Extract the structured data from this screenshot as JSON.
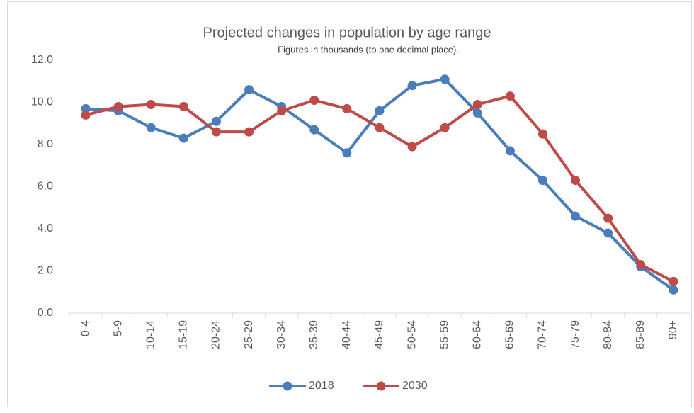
{
  "chart_data": {
    "type": "line",
    "title": "Projected changes in population by age range",
    "subtitle": "Figures in thousands (to one decimal place).",
    "categories": [
      "0-4",
      "5-9",
      "10-14",
      "15-19",
      "20-24",
      "25-29",
      "30-34",
      "35-39",
      "40-44",
      "45-49",
      "50-54",
      "55-59",
      "60-64",
      "65-69",
      "70-74",
      "75-79",
      "80-84",
      "85-89",
      "90+"
    ],
    "series": [
      {
        "name": "2018",
        "color": "#4a7ebb",
        "values": [
          9.7,
          9.6,
          8.8,
          8.3,
          9.1,
          10.6,
          9.8,
          8.7,
          7.6,
          9.6,
          10.8,
          11.1,
          9.5,
          7.7,
          6.3,
          4.6,
          3.8,
          2.2,
          1.1
        ]
      },
      {
        "name": "2030",
        "color": "#be4b48",
        "values": [
          9.4,
          9.8,
          9.9,
          9.8,
          8.6,
          8.6,
          9.6,
          10.1,
          9.7,
          8.8,
          7.9,
          8.8,
          9.9,
          10.3,
          8.5,
          6.3,
          4.5,
          2.3,
          1.5
        ]
      }
    ],
    "ylim": [
      0,
      12
    ],
    "yticks": [
      {
        "value": 0,
        "label": "0.0"
      },
      {
        "value": 2,
        "label": "2.0"
      },
      {
        "value": 4,
        "label": "4.0"
      },
      {
        "value": 6,
        "label": "6.0"
      },
      {
        "value": 8,
        "label": "8.0"
      },
      {
        "value": 10,
        "label": "10.0"
      },
      {
        "value": 12,
        "label": "12.0"
      }
    ],
    "grid": false,
    "legend": "bottom"
  }
}
